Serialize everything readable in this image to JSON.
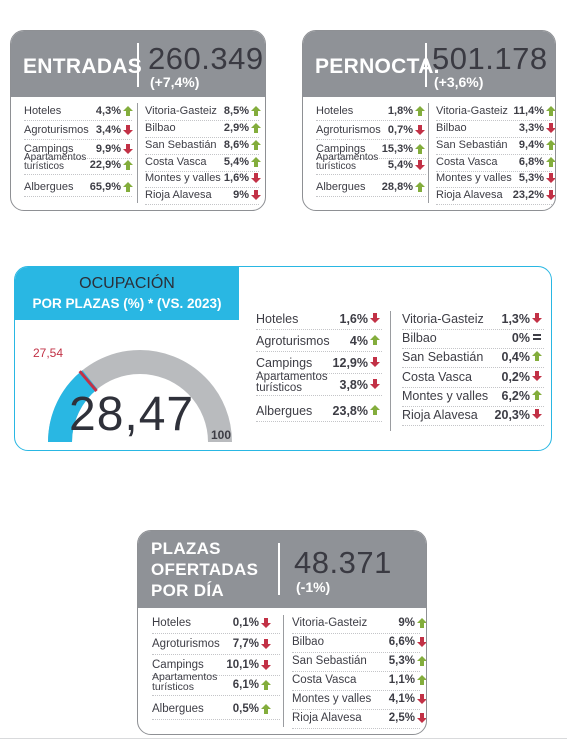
{
  "colors": {
    "header_gray": "#8f9297",
    "cyan": "#29b7e3",
    "up": "#83ad3c",
    "down": "#c23146",
    "gauge_gray": "#b9bbbe"
  },
  "entradas": {
    "title": "ENTRADAS",
    "value": "260.349",
    "change": "(+7,4%)",
    "left": [
      {
        "label": "Hoteles",
        "value": "4,3%",
        "dir": "up"
      },
      {
        "label": "Agroturismos",
        "value": "3,4%",
        "dir": "down"
      },
      {
        "label": "Campings",
        "value": "9,9%",
        "dir": "down"
      },
      {
        "label": "Apartamentos\nturísticos",
        "value": "22,9%",
        "dir": "up"
      },
      {
        "label": "Albergues",
        "value": "65,9%",
        "dir": "up"
      }
    ],
    "right": [
      {
        "label": "Vitoria-Gasteiz",
        "value": "8,5%",
        "dir": "up"
      },
      {
        "label": "Bilbao",
        "value": "2,9%",
        "dir": "up"
      },
      {
        "label": "San Sebastián",
        "value": "8,6%",
        "dir": "up"
      },
      {
        "label": "Costa Vasca",
        "value": "5,4%",
        "dir": "up"
      },
      {
        "label": "Montes y valles",
        "value": "1,6%",
        "dir": "down"
      },
      {
        "label": "Rioja Alavesa",
        "value": "9%",
        "dir": "down"
      }
    ]
  },
  "pernocta": {
    "title": "PERNOCTA.",
    "value": "501.178",
    "change": "(+3,6%)",
    "left": [
      {
        "label": "Hoteles",
        "value": "1,8%",
        "dir": "up"
      },
      {
        "label": "Agroturismos",
        "value": "0,7%",
        "dir": "down"
      },
      {
        "label": "Campings",
        "value": "15,3%",
        "dir": "up"
      },
      {
        "label": "Apartamentos\nturísticos",
        "value": "5,4%",
        "dir": "down"
      },
      {
        "label": "Albergues",
        "value": "28,8%",
        "dir": "up"
      }
    ],
    "right": [
      {
        "label": "Vitoria-Gasteiz",
        "value": "11,4%",
        "dir": "up"
      },
      {
        "label": "Bilbao",
        "value": "3,3%",
        "dir": "down"
      },
      {
        "label": "San Sebastián",
        "value": "9,4%",
        "dir": "up"
      },
      {
        "label": "Costa Vasca",
        "value": "6,8%",
        "dir": "up"
      },
      {
        "label": "Montes y valles",
        "value": "5,3%",
        "dir": "down"
      },
      {
        "label": "Rioja Alavesa",
        "value": "23,2%",
        "dir": "down"
      }
    ]
  },
  "ocupacion": {
    "title_line1": "OCUPACIÓN",
    "title_line2": "POR PLAZAS (%) * (VS. 2023)",
    "gauge_value": "28,47",
    "gauge_value_num": 28.47,
    "marker_label": "27,54",
    "marker_value_num": 27.54,
    "gauge_min": "0",
    "gauge_max": "100",
    "left": [
      {
        "label": "Hoteles",
        "value": "1,6%",
        "dir": "down"
      },
      {
        "label": "Agroturismos",
        "value": "4%",
        "dir": "up"
      },
      {
        "label": "Campings",
        "value": "12,9%",
        "dir": "down"
      },
      {
        "label": "Apartamentos\nturísticos",
        "value": "3,8%",
        "dir": "down"
      },
      {
        "label": "Albergues",
        "value": "23,8%",
        "dir": "up"
      }
    ],
    "right": [
      {
        "label": "Vitoria-Gasteiz",
        "value": "1,3%",
        "dir": "down"
      },
      {
        "label": "Bilbao",
        "value": "0%",
        "dir": "eq"
      },
      {
        "label": "San Sebastián",
        "value": "0,4%",
        "dir": "up"
      },
      {
        "label": "Costa Vasca",
        "value": "0,2%",
        "dir": "down"
      },
      {
        "label": "Montes y valles",
        "value": "6,2%",
        "dir": "up"
      },
      {
        "label": "Rioja Alavesa",
        "value": "20,3%",
        "dir": "down"
      }
    ]
  },
  "plazas": {
    "title_line1": "PLAZAS",
    "title_line2": "OFERTADAS",
    "title_line3": "POR DÍA",
    "value": "48.371",
    "change": "(-1%)",
    "left": [
      {
        "label": "Hoteles",
        "value": "0,1%",
        "dir": "down"
      },
      {
        "label": "Agroturismos",
        "value": "7,7%",
        "dir": "down"
      },
      {
        "label": "Campings",
        "value": "10,1%",
        "dir": "down"
      },
      {
        "label": "Apartamentos\nturísticos",
        "value": "6,1%",
        "dir": "up"
      },
      {
        "label": "Albergues",
        "value": "0,5%",
        "dir": "up"
      }
    ],
    "right": [
      {
        "label": "Vitoria-Gasteiz",
        "value": "9%",
        "dir": "up"
      },
      {
        "label": "Bilbao",
        "value": "6,6%",
        "dir": "down"
      },
      {
        "label": "San Sebastián",
        "value": "5,3%",
        "dir": "up"
      },
      {
        "label": "Costa Vasca",
        "value": "1,1%",
        "dir": "up"
      },
      {
        "label": "Montes y valles",
        "value": "4,1%",
        "dir": "down"
      },
      {
        "label": "Rioja Alavesa",
        "value": "2,5%",
        "dir": "down"
      }
    ]
  }
}
